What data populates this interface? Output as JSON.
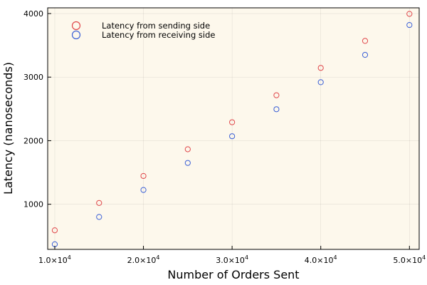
{
  "chart_data": {
    "type": "scatter",
    "xlabel": "Number of Orders Sent",
    "ylabel": "Latency (nanoseconds)",
    "xlim": [
      9200,
      51100
    ],
    "ylim": [
      290,
      4090
    ],
    "xticks": [
      {
        "value": 10000,
        "mant": "1.0×10",
        "exp": "4"
      },
      {
        "value": 20000,
        "mant": "2.0×10",
        "exp": "4"
      },
      {
        "value": 30000,
        "mant": "3.0×10",
        "exp": "4"
      },
      {
        "value": 40000,
        "mant": "4.0×10",
        "exp": "4"
      },
      {
        "value": 50000,
        "mant": "5.0×10",
        "exp": "4"
      }
    ],
    "yticks": [
      {
        "value": 1000,
        "label": "1000"
      },
      {
        "value": 2000,
        "label": "2000"
      },
      {
        "value": 3000,
        "label": "3000"
      },
      {
        "value": 4000,
        "label": "4000"
      }
    ],
    "grid": true,
    "legend_position": "top-left",
    "background": "#fdf8ec",
    "series": [
      {
        "name": "Latency from sending side",
        "color": "#e0464a",
        "x": [
          10000,
          15000,
          20000,
          25000,
          30000,
          35000,
          40000,
          45000,
          50000
        ],
        "y": [
          590,
          1020,
          1445,
          1865,
          2290,
          2715,
          3145,
          3570,
          3995
        ]
      },
      {
        "name": "Latency from receiving side",
        "color": "#3a5fd6",
        "x": [
          10000,
          15000,
          20000,
          25000,
          30000,
          35000,
          40000,
          45000,
          50000
        ],
        "y": [
          370,
          800,
          1225,
          1650,
          2070,
          2495,
          2920,
          3350,
          3820
        ]
      }
    ]
  }
}
